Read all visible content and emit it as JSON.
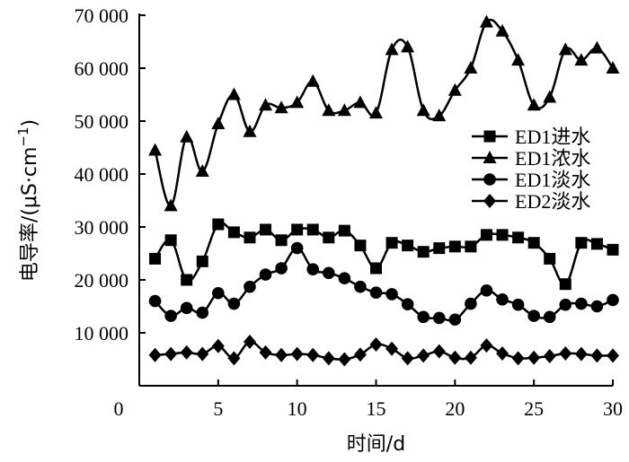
{
  "chart_data": {
    "type": "line",
    "xlabel": "时间/d",
    "ylabel": "电导率/(μS·cm",
    "ylabel_superscript": "−1",
    "ylabel_close": ")",
    "xlim": [
      0,
      30
    ],
    "ylim": [
      0,
      70000
    ],
    "xticks": [
      0,
      5,
      10,
      15,
      20,
      25,
      30
    ],
    "xtick_labels": [
      "0",
      "5",
      "10",
      "15",
      "20",
      "25",
      "30"
    ],
    "yticks": [
      10000,
      20000,
      30000,
      40000,
      50000,
      60000,
      70000
    ],
    "ytick_labels": [
      "10 000",
      "20 000",
      "30 000",
      "40 000",
      "50 000",
      "60 000",
      "70 000"
    ],
    "grid": false,
    "legend_position": "right",
    "line_color": "#000000",
    "x": [
      1,
      2,
      3,
      4,
      5,
      6,
      7,
      8,
      9,
      10,
      11,
      12,
      13,
      14,
      15,
      16,
      17,
      18,
      19,
      20,
      21,
      22,
      23,
      24,
      25,
      26,
      27,
      28,
      29,
      30
    ],
    "series": [
      {
        "name": "ED1进水",
        "marker": "square",
        "values": [
          24000,
          27500,
          20000,
          23500,
          30500,
          29000,
          28000,
          29500,
          27500,
          29500,
          29500,
          28000,
          29300,
          26500,
          22200,
          27000,
          26500,
          25300,
          26000,
          26300,
          26300,
          28500,
          28500,
          28000,
          27000,
          24000,
          19200,
          27000,
          26800,
          25700
        ]
      },
      {
        "name": "ED1浓水",
        "marker": "triangle",
        "values": [
          44500,
          34000,
          47000,
          40500,
          49500,
          55000,
          48000,
          53000,
          52500,
          53500,
          57500,
          52000,
          52000,
          53500,
          51500,
          63500,
          64000,
          52000,
          51000,
          55800,
          60000,
          68700,
          67000,
          61500,
          53000,
          54500,
          63500,
          61500,
          63800,
          60000
        ]
      },
      {
        "name": "ED1淡水",
        "marker": "circle",
        "values": [
          16000,
          13200,
          14700,
          13800,
          17500,
          15500,
          18700,
          21000,
          22200,
          26000,
          22000,
          21300,
          20300,
          18700,
          17600,
          17300,
          15400,
          13000,
          12800,
          12500,
          15500,
          18000,
          16300,
          15300,
          13200,
          13000,
          15300,
          15500,
          15000,
          16200
        ]
      },
      {
        "name": "ED2淡水",
        "marker": "diamond",
        "values": [
          5800,
          6000,
          6300,
          6000,
          7500,
          5200,
          8300,
          6300,
          5800,
          6000,
          5800,
          5200,
          5000,
          5900,
          7800,
          7000,
          5200,
          5700,
          6500,
          5300,
          5300,
          7600,
          6100,
          5200,
          5300,
          5600,
          6100,
          6000,
          5700,
          5700
        ]
      }
    ]
  }
}
